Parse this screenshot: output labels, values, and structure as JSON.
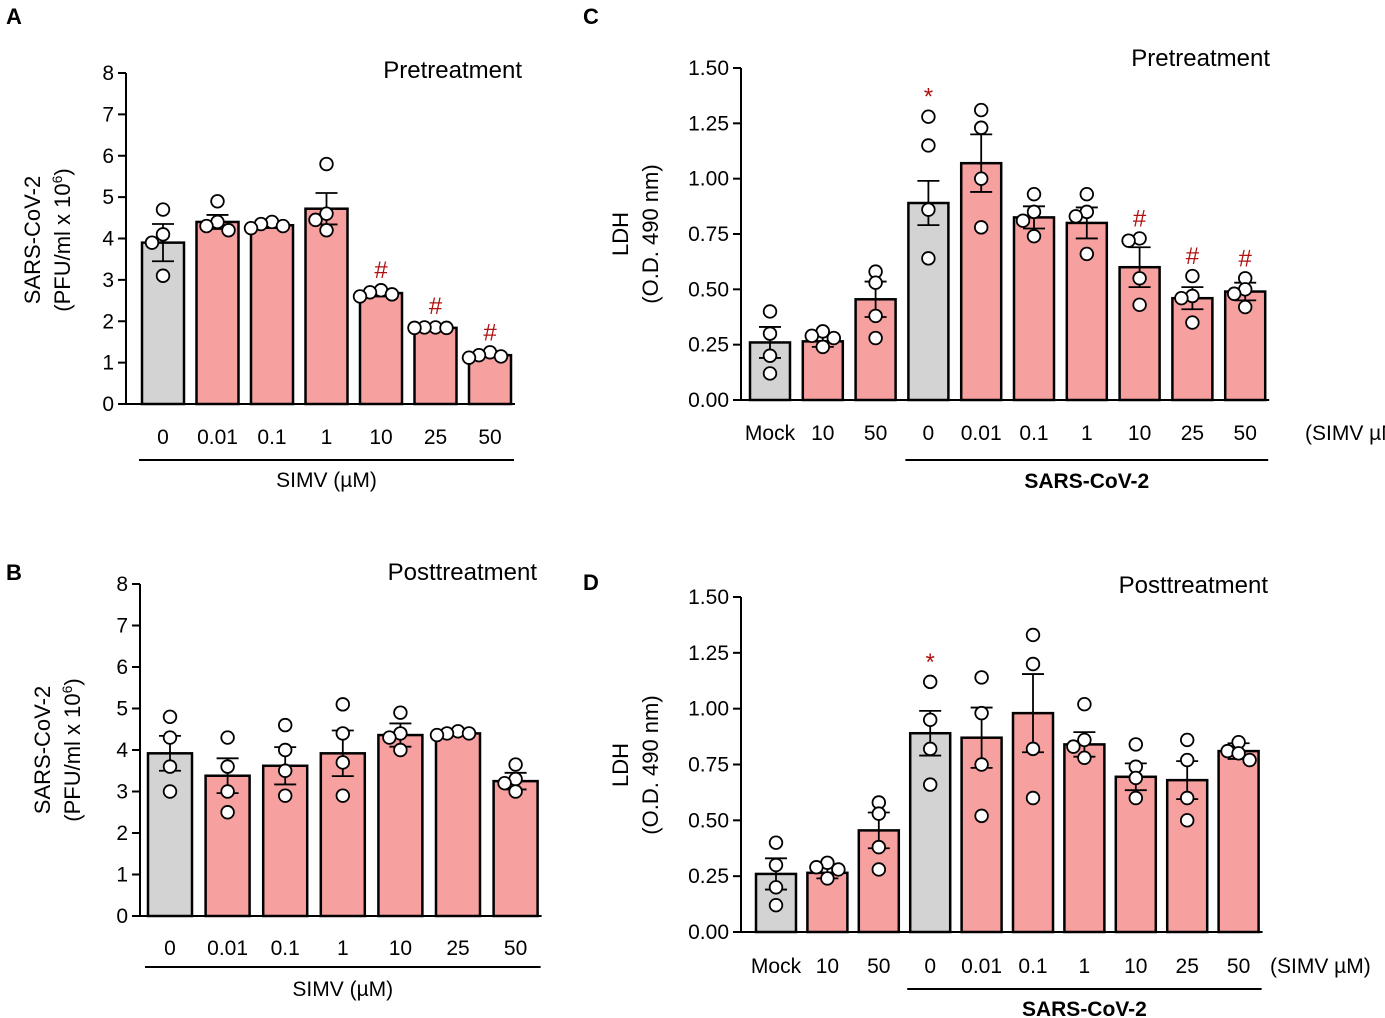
{
  "colors": {
    "control": "#d3d3d3",
    "treated": "#f7a0a0",
    "significance": "#b01010",
    "outline": "#000000"
  },
  "chart_data": [
    {
      "panel": "A",
      "type": "bar",
      "title": "Pretreatment",
      "ylabel_line1": "SARS-CoV-2",
      "ylabel_line2": "(PFU/ml x 10",
      "ylabel_sup": "6",
      "ylabel_close": ")",
      "ylim": [
        0,
        8
      ],
      "yticks": [
        "0",
        "1",
        "2",
        "3",
        "4",
        "5",
        "6",
        "7",
        "8"
      ],
      "categories": [
        "0",
        "0.01",
        "0.1",
        "1",
        "10",
        "25",
        "50"
      ],
      "values": [
        3.9,
        4.4,
        4.32,
        4.72,
        2.68,
        1.84,
        1.18
      ],
      "errors": [
        0.45,
        0.17,
        0.07,
        0.38,
        0.08,
        0.04,
        0.05
      ],
      "points": [
        [
          4.7,
          4.1,
          3.9,
          3.1
        ],
        [
          4.9,
          4.4,
          4.3,
          4.2
        ],
        [
          4.4,
          4.35,
          4.3,
          4.25
        ],
        [
          5.8,
          4.6,
          4.45,
          4.2
        ],
        [
          2.75,
          2.7,
          2.65,
          2.6
        ],
        [
          1.85,
          1.85,
          1.84,
          1.84
        ],
        [
          1.25,
          1.18,
          1.15,
          1.12
        ]
      ],
      "control_flags": [
        true,
        false,
        false,
        false,
        false,
        false,
        false
      ],
      "significance": [
        "",
        "",
        "",
        "",
        "#",
        "#",
        "#"
      ],
      "groups": [
        {
          "label": "SIMV (µM)",
          "from": 0,
          "to": 6,
          "bold": false
        }
      ],
      "unit_label": ""
    },
    {
      "panel": "B",
      "type": "bar",
      "title": "Posttreatment",
      "ylabel_line1": "SARS-CoV-2",
      "ylabel_line2": "(PFU/ml x 10",
      "ylabel_sup": "6",
      "ylabel_close": ")",
      "ylim": [
        0,
        8
      ],
      "yticks": [
        "0",
        "1",
        "2",
        "3",
        "4",
        "5",
        "6",
        "7",
        "8"
      ],
      "categories": [
        "0",
        "0.01",
        "0.1",
        "1",
        "10",
        "25",
        "50"
      ],
      "values": [
        3.92,
        3.38,
        3.62,
        3.92,
        4.36,
        4.4,
        3.25
      ],
      "errors": [
        0.42,
        0.42,
        0.45,
        0.55,
        0.28,
        0.04,
        0.2
      ],
      "points": [
        [
          4.8,
          4.3,
          3.6,
          3.0
        ],
        [
          4.3,
          3.6,
          3.0,
          2.5
        ],
        [
          4.6,
          4.0,
          3.5,
          2.9
        ],
        [
          5.1,
          4.4,
          3.7,
          2.9
        ],
        [
          4.9,
          4.4,
          4.3,
          4.0
        ],
        [
          4.45,
          4.4,
          4.4,
          4.36
        ],
        [
          3.65,
          3.3,
          3.2,
          3.0
        ]
      ],
      "control_flags": [
        true,
        false,
        false,
        false,
        false,
        false,
        false
      ],
      "significance": [
        "",
        "",
        "",
        "",
        "",
        "",
        ""
      ],
      "groups": [
        {
          "label": "SIMV (µM)",
          "from": 0,
          "to": 6,
          "bold": false
        }
      ],
      "unit_label": ""
    },
    {
      "panel": "C",
      "type": "bar",
      "title": "Pretreatment",
      "ylabel_line1": "LDH",
      "ylabel_line2": "(O.D. 490 nm)",
      "ylabel_sup": "",
      "ylabel_close": "",
      "ylim": [
        0,
        1.5
      ],
      "yticks": [
        "0.00",
        "0.25",
        "0.50",
        "0.75",
        "1.00",
        "1.25",
        "1.50"
      ],
      "categories": [
        "Mock",
        "10",
        "50",
        "0",
        "0.01",
        "0.1",
        "1",
        "10",
        "25",
        "50"
      ],
      "values": [
        0.26,
        0.265,
        0.455,
        0.89,
        1.07,
        0.825,
        0.8,
        0.6,
        0.46,
        0.49
      ],
      "errors": [
        0.07,
        0.025,
        0.08,
        0.1,
        0.13,
        0.05,
        0.07,
        0.09,
        0.05,
        0.04
      ],
      "points": [
        [
          0.4,
          0.3,
          0.2,
          0.12
        ],
        [
          0.31,
          0.29,
          0.28,
          0.24
        ],
        [
          0.58,
          0.53,
          0.38,
          0.28
        ],
        [
          1.28,
          1.15,
          0.86,
          0.64
        ],
        [
          1.31,
          1.23,
          1.0,
          0.78
        ],
        [
          0.93,
          0.85,
          0.81,
          0.74
        ],
        [
          0.93,
          0.85,
          0.83,
          0.66
        ],
        [
          0.73,
          0.72,
          0.55,
          0.43
        ],
        [
          0.56,
          0.47,
          0.46,
          0.35
        ],
        [
          0.55,
          0.5,
          0.48,
          0.42
        ]
      ],
      "control_flags": [
        true,
        false,
        false,
        true,
        false,
        false,
        false,
        false,
        false,
        false
      ],
      "significance": [
        "",
        "",
        "",
        "*",
        "",
        "",
        "",
        "#",
        "#",
        "#"
      ],
      "groups": [
        {
          "label": "SARS-CoV-2",
          "from": 3,
          "to": 9,
          "bold": true
        }
      ],
      "unit_label": "(SIMV µM)"
    },
    {
      "panel": "D",
      "type": "bar",
      "title": "Posttreatment",
      "ylabel_line1": "LDH",
      "ylabel_line2": "(O.D. 490 nm)",
      "ylabel_sup": "",
      "ylabel_close": "",
      "ylim": [
        0,
        1.5
      ],
      "yticks": [
        "0.00",
        "0.25",
        "0.50",
        "0.75",
        "1.00",
        "1.25",
        "1.50"
      ],
      "categories": [
        "Mock",
        "10",
        "50",
        "0",
        "0.01",
        "0.1",
        "1",
        "10",
        "25",
        "50"
      ],
      "values": [
        0.26,
        0.265,
        0.455,
        0.89,
        0.87,
        0.98,
        0.84,
        0.695,
        0.68,
        0.81
      ],
      "errors": [
        0.07,
        0.025,
        0.08,
        0.1,
        0.135,
        0.175,
        0.055,
        0.06,
        0.085,
        0.035
      ],
      "points": [
        [
          0.4,
          0.3,
          0.2,
          0.12
        ],
        [
          0.31,
          0.29,
          0.28,
          0.24
        ],
        [
          0.58,
          0.53,
          0.38,
          0.28
        ],
        [
          1.12,
          0.95,
          0.82,
          0.66
        ],
        [
          1.14,
          0.98,
          0.75,
          0.52
        ],
        [
          1.33,
          1.2,
          0.82,
          0.6
        ],
        [
          1.02,
          0.86,
          0.83,
          0.78
        ],
        [
          0.84,
          0.74,
          0.69,
          0.6
        ],
        [
          0.86,
          0.77,
          0.6,
          0.5
        ],
        [
          0.85,
          0.81,
          0.8,
          0.77
        ]
      ],
      "control_flags": [
        true,
        false,
        false,
        true,
        false,
        false,
        false,
        false,
        false,
        false
      ],
      "significance": [
        "",
        "",
        "",
        "*",
        "",
        "",
        "",
        "",
        "",
        ""
      ],
      "groups": [
        {
          "label": "SARS-CoV-2",
          "from": 3,
          "to": 9,
          "bold": true
        }
      ],
      "unit_label": "(SIMV µM)"
    }
  ]
}
